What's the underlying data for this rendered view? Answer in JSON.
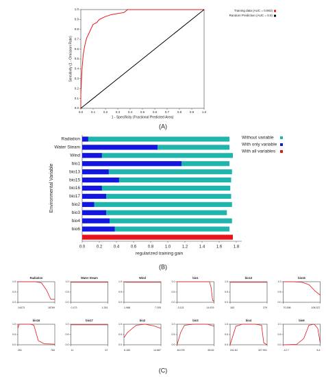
{
  "panel_labels": [
    "(A)",
    "(B)",
    "(C)"
  ],
  "chart_data": [
    {
      "type": "line",
      "xlabel": "1 - Specificity (Fractional Predicted Area)",
      "ylabel": "Sensitivity (1 - Omission Rate)",
      "xlim": [
        0,
        1
      ],
      "ylim": [
        0,
        1
      ],
      "xticks": [
        {
          "value": 0,
          "label": "0.0"
        },
        0.1,
        0.2,
        0.3,
        0.4,
        0.5,
        0.6,
        0.7,
        0.8,
        0.9,
        {
          "value": 1,
          "label": "1.0"
        }
      ],
      "yticks": [
        {
          "value": 0,
          "label": "0.0"
        },
        0.1,
        0.2,
        0.3,
        0.4,
        0.5,
        0.6,
        0.7,
        0.8,
        0.9,
        {
          "value": 1,
          "label": "1.0"
        }
      ],
      "legend": "top-right",
      "series": [
        {
          "name": "Training data (AUC = 0.953)",
          "color": "#e8141b",
          "x": [
            0,
            0,
            0.01,
            0.02,
            0.03,
            0.04,
            0.05,
            0.07,
            0.08,
            0.1,
            0.13,
            0.15,
            0.2,
            0.25,
            0.35,
            0.38,
            1
          ],
          "values": [
            0,
            0.15,
            0.4,
            0.55,
            0.62,
            0.68,
            0.72,
            0.77,
            0.8,
            0.85,
            0.87,
            0.9,
            0.93,
            0.95,
            0.97,
            1,
            1
          ]
        },
        {
          "name": "Random Prediction (AUC = 0.5)",
          "color": "#000000",
          "x": [
            0,
            1
          ],
          "values": [
            0,
            1
          ]
        }
      ]
    },
    {
      "type": "bar",
      "orientation": "horizontal",
      "xlabel": "regularized training gain",
      "ylabel": "Environmental Variable",
      "categories": [
        "Radiation",
        "Water Steam",
        "Wind",
        "bio1",
        "bio13",
        "bio15",
        "bio16",
        "bio17",
        "bio2",
        "bio3",
        "bio4",
        "bio6",
        null
      ],
      "xlim": [
        0,
        1.8
      ],
      "xticks": [
        {
          "value": 0,
          "label": "0.0"
        },
        0.2,
        0.4,
        0.6,
        0.8,
        {
          "value": 1,
          "label": "1.0"
        },
        1.2,
        1.4,
        1.6,
        1.8
      ],
      "legend": "top-right",
      "series": [
        {
          "name": "Without variable",
          "color": "#1fb5ad",
          "values": [
            1.72,
            1.72,
            1.76,
            1.72,
            1.75,
            1.74,
            1.73,
            1.74,
            1.75,
            1.69,
            1.75,
            1.72,
            null
          ]
        },
        {
          "name": "With only variable",
          "color": "#1515e0",
          "values": [
            0.07,
            0.88,
            0.23,
            1.16,
            0.31,
            0.43,
            0.23,
            0.28,
            0.14,
            0.28,
            0.32,
            0.38,
            null
          ]
        },
        {
          "name": "With all variables",
          "color": "#e8141b",
          "values": [
            null,
            null,
            null,
            null,
            null,
            null,
            null,
            null,
            null,
            null,
            null,
            null,
            1.76
          ]
        }
      ]
    },
    {
      "type": "line",
      "title": "Radiation",
      "color": "#e8141b",
      "xlim": [
        14473,
        18769
      ],
      "xticks": [
        14473,
        18769
      ],
      "ylim": [
        0,
        1
      ],
      "yticks": [
        {
          "value": 0,
          "label": "0.0"
        },
        0.5,
        {
          "value": 1,
          "label": "1.0"
        }
      ],
      "x": [
        14473,
        15500,
        16500,
        17200,
        17800,
        18300,
        18769
      ],
      "values": [
        1,
        1,
        1,
        0.95,
        0.6,
        0.15,
        0.15
      ]
    },
    {
      "type": "line",
      "title": "Water Steam",
      "color": "#e8141b",
      "xlim": [
        0.173,
        1.251
      ],
      "xticks": [
        0.173,
        1.251
      ],
      "ylim": [
        0,
        1
      ],
      "yticks": [
        {
          "value": 0,
          "label": "0.0"
        },
        0.5,
        {
          "value": 1,
          "label": "1.0"
        }
      ],
      "x": [
        0.173,
        0.7,
        1.251
      ],
      "values": [
        0.97,
        0.97,
        0.97
      ]
    },
    {
      "type": "line",
      "title": "Wind",
      "color": "#e8141b",
      "xlim": [
        1.988,
        7.205
      ],
      "xticks": [
        1.988,
        7.205
      ],
      "ylim": [
        0,
        1
      ],
      "yticks": [
        {
          "value": 0,
          "label": "0.0"
        },
        0.5,
        {
          "value": 1,
          "label": "1.0"
        }
      ],
      "x": [
        1.988,
        2.3,
        3,
        5,
        7.205
      ],
      "values": [
        1,
        0.97,
        0.97,
        0.97,
        0.97
      ]
    },
    {
      "type": "line",
      "title": "bio1",
      "color": "#e8141b",
      "xlim": [
        -3.121,
        14.676
      ],
      "xticks": [
        -3.121,
        14.676
      ],
      "ylim": [
        0,
        1
      ],
      "yticks": [
        {
          "value": 0,
          "label": "0.0"
        },
        0.5,
        {
          "value": 1,
          "label": "1.0"
        }
      ],
      "x": [
        -3.121,
        5,
        10,
        12.5,
        13.3,
        14,
        14.676
      ],
      "values": [
        1,
        1,
        1,
        1,
        0.7,
        0.1,
        0.05
      ]
    },
    {
      "type": "line",
      "title": "bio13",
      "color": "#e8141b",
      "xlim": [
        163,
        279
      ],
      "xticks": [
        163,
        279
      ],
      "ylim": [
        0,
        1
      ],
      "yticks": [
        {
          "value": 0,
          "label": "0.0"
        },
        0.5,
        {
          "value": 1,
          "label": "1.0"
        }
      ],
      "x": [
        163,
        220,
        279
      ],
      "values": [
        0.97,
        0.97,
        0.97
      ]
    },
    {
      "type": "line",
      "title": "bio15",
      "color": "#e8141b",
      "xlim": [
        70.398,
        108.327
      ],
      "xticks": [
        70.398,
        108.327
      ],
      "ylim": [
        0,
        1
      ],
      "yticks": [
        {
          "value": 0,
          "label": "0.0"
        },
        0.5,
        {
          "value": 1,
          "label": "1.0"
        }
      ],
      "x": [
        70.398,
        80,
        90,
        97,
        103,
        108.327
      ],
      "values": [
        1,
        1,
        0.97,
        0.85,
        0.55,
        0.35
      ]
    },
    {
      "type": "line",
      "title": "bio16",
      "color": "#e8141b",
      "xlim": [
        281,
        784
      ],
      "xticks": [
        281,
        784
      ],
      "ylim": [
        0,
        1
      ],
      "yticks": [
        {
          "value": 0,
          "label": "0.0"
        },
        0.5,
        {
          "value": 1,
          "label": "1.0"
        }
      ],
      "x": [
        281,
        300,
        450,
        500,
        560,
        640,
        784
      ],
      "values": [
        0.8,
        1,
        1,
        0.95,
        0.2,
        0.05,
        0.03
      ]
    },
    {
      "type": "line",
      "title": "bio17",
      "color": "#e8141b",
      "xlim": [
        11,
        67
      ],
      "xticks": [
        11,
        67
      ],
      "ylim": [
        0,
        1
      ],
      "yticks": [
        {
          "value": 0,
          "label": "0.0"
        },
        0.5,
        {
          "value": 1,
          "label": "1.0"
        }
      ],
      "x": [
        11,
        40,
        67
      ],
      "values": [
        0.97,
        0.97,
        0.97
      ]
    },
    {
      "type": "line",
      "title": "bio2",
      "color": "#e8141b",
      "xlim": [
        6.183,
        14.687
      ],
      "xticks": [
        6.183,
        14.687
      ],
      "ylim": [
        0,
        1
      ],
      "yticks": [
        {
          "value": 0,
          "label": "0.0"
        },
        0.5,
        {
          "value": 1,
          "label": "1.0"
        }
      ],
      "x": [
        6.183,
        7,
        9,
        11,
        13,
        14.687
      ],
      "values": [
        0.35,
        0.6,
        0.95,
        1,
        0.92,
        0.8
      ]
    },
    {
      "type": "line",
      "title": "bio3",
      "color": "#e8141b",
      "xlim": [
        46.078,
        65.62
      ],
      "xticks": [
        46.078,
        65.62
      ],
      "ylim": [
        0,
        1
      ],
      "yticks": [
        {
          "value": 0,
          "label": "0.0"
        },
        0.5,
        {
          "value": 1,
          "label": "1.0"
        }
      ],
      "x": [
        46.078,
        48,
        50,
        55,
        62,
        64,
        65.62
      ],
      "values": [
        0,
        0.6,
        0.95,
        1,
        1,
        0.95,
        0.9
      ]
    },
    {
      "type": "line",
      "title": "bio4",
      "color": "#e8141b",
      "xlim": [
        241.61,
        327.901
      ],
      "xticks": [
        241.61,
        327.901
      ],
      "ylim": [
        0,
        1
      ],
      "yticks": [
        {
          "value": 0,
          "label": "0.0"
        },
        0.5,
        {
          "value": 1,
          "label": "1.0"
        }
      ],
      "x": [
        241.61,
        255,
        270,
        300,
        315,
        320,
        327.901
      ],
      "values": [
        0,
        0.9,
        1,
        1,
        0.95,
        0.1,
        0
      ]
    },
    {
      "type": "line",
      "title": "bio6",
      "color": "#e8141b",
      "xlim": [
        -12.7,
        8.4
      ],
      "xticks": [
        -12.7,
        8.4
      ],
      "ylim": [
        0,
        1
      ],
      "yticks": [
        {
          "value": 0,
          "label": "0.0"
        },
        0.5,
        {
          "value": 1,
          "label": "1.0"
        }
      ],
      "x": [
        -12.7,
        -5,
        -1,
        2,
        5,
        7,
        8.4
      ],
      "values": [
        0,
        0.02,
        0.3,
        0.95,
        1,
        0.8,
        0.1
      ]
    }
  ]
}
